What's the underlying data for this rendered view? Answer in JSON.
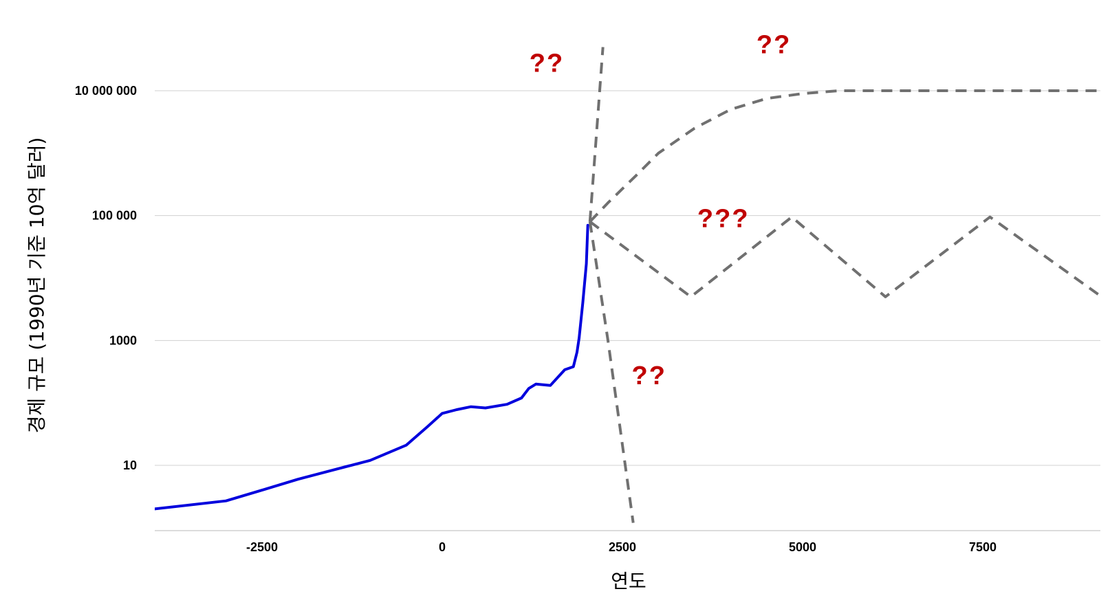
{
  "chart_data": {
    "type": "line",
    "xlabel": "연도",
    "ylabel": "경제 규모 (1990년 기준 10억 달러)",
    "x_ticks": [
      "-2500",
      "0",
      "2500",
      "5000",
      "7500"
    ],
    "y_ticks": [
      "10",
      "1000",
      "100 000",
      "10 000 000"
    ],
    "xlim": [
      -4000,
      9100
    ],
    "ylim": [
      1.2,
      9000000
    ],
    "y_scale": "log",
    "grid": true,
    "annotations": [
      {
        "text": "??",
        "x": 1450,
        "y": 20000000
      },
      {
        "text": "??",
        "x": 4600,
        "y": 40000000
      },
      {
        "text": "???",
        "x": 3900,
        "y": 65000
      },
      {
        "text": "??",
        "x": 2870,
        "y": 200
      }
    ],
    "series": [
      {
        "role": "historical",
        "color": "#0000dd",
        "style": "solid",
        "points": [
          [
            -4000,
            2
          ],
          [
            -3000,
            2.7
          ],
          [
            -2500,
            4
          ],
          [
            -2000,
            6
          ],
          [
            -1500,
            8.5
          ],
          [
            -1000,
            12
          ],
          [
            -500,
            21
          ],
          [
            -200,
            42
          ],
          [
            0,
            68
          ],
          [
            200,
            78
          ],
          [
            400,
            87
          ],
          [
            600,
            83
          ],
          [
            900,
            95
          ],
          [
            1100,
            120
          ],
          [
            1200,
            170
          ],
          [
            1300,
            200
          ],
          [
            1500,
            190
          ],
          [
            1700,
            340
          ],
          [
            1820,
            380
          ],
          [
            1870,
            650
          ],
          [
            1900,
            1100
          ],
          [
            1950,
            4000
          ],
          [
            2000,
            17000
          ],
          [
            2020,
            70000
          ]
        ]
      },
      {
        "role": "scenario-explosive-growth",
        "color": "#707070",
        "style": "dashed",
        "points": [
          [
            2050,
            80000
          ],
          [
            2230,
            50000000
          ]
        ]
      },
      {
        "role": "scenario-collapse",
        "color": "#707070",
        "style": "dashed",
        "points": [
          [
            2050,
            80000
          ],
          [
            2300,
            1000
          ],
          [
            2650,
            1.2
          ]
        ]
      },
      {
        "role": "scenario-plateau",
        "color": "#707070",
        "style": "dashed",
        "points": [
          [
            2050,
            80000
          ],
          [
            2300,
            160000
          ],
          [
            2700,
            450000
          ],
          [
            3000,
            1000000
          ],
          [
            3500,
            2500000
          ],
          [
            4000,
            5000000
          ],
          [
            4500,
            7500000
          ],
          [
            5000,
            9000000
          ],
          [
            5500,
            10000000
          ],
          [
            9100,
            10000000
          ]
        ]
      },
      {
        "role": "scenario-cycles",
        "color": "#707070",
        "style": "dashed",
        "points": [
          [
            2050,
            80000
          ],
          [
            3450,
            5000
          ],
          [
            4850,
            95000
          ],
          [
            6150,
            5000
          ],
          [
            7600,
            95000
          ],
          [
            9100,
            5500
          ]
        ]
      }
    ]
  }
}
